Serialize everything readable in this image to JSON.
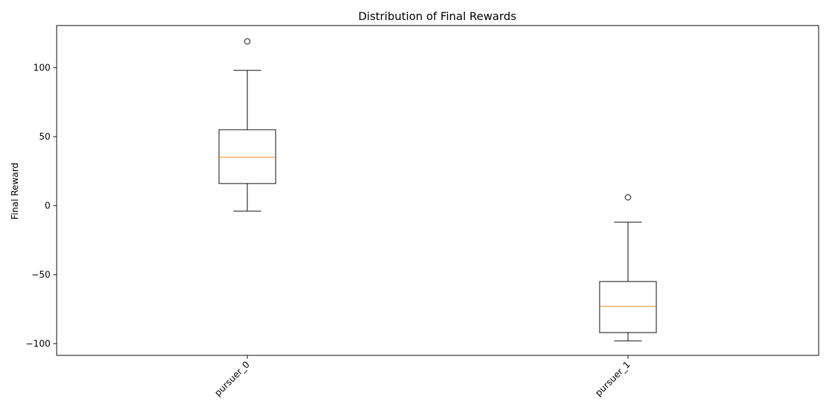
{
  "chart_data": {
    "type": "boxplot",
    "title": "Distribution of Final Rewards",
    "xlabel": "",
    "ylabel": "Final Reward",
    "ylim": [
      -108.5,
      130.5
    ],
    "yticks": [
      -100,
      -50,
      0,
      50,
      100
    ],
    "ytick_labels": [
      "−100",
      "−50",
      "0",
      "50",
      "100"
    ],
    "categories": [
      "pursuer_0",
      "pursuer_1"
    ],
    "boxes": [
      {
        "name": "pursuer_0",
        "whisker_low": -4,
        "q1": 16,
        "median": 35,
        "q3": 55,
        "whisker_high": 98,
        "fliers": [
          119
        ]
      },
      {
        "name": "pursuer_1",
        "whisker_low": -98,
        "q1": -92,
        "median": -73,
        "q3": -55,
        "whisker_high": -12,
        "fliers": [
          6
        ]
      }
    ],
    "median_color": "#ff7f0e",
    "box_color": "#000000",
    "grid": false
  }
}
